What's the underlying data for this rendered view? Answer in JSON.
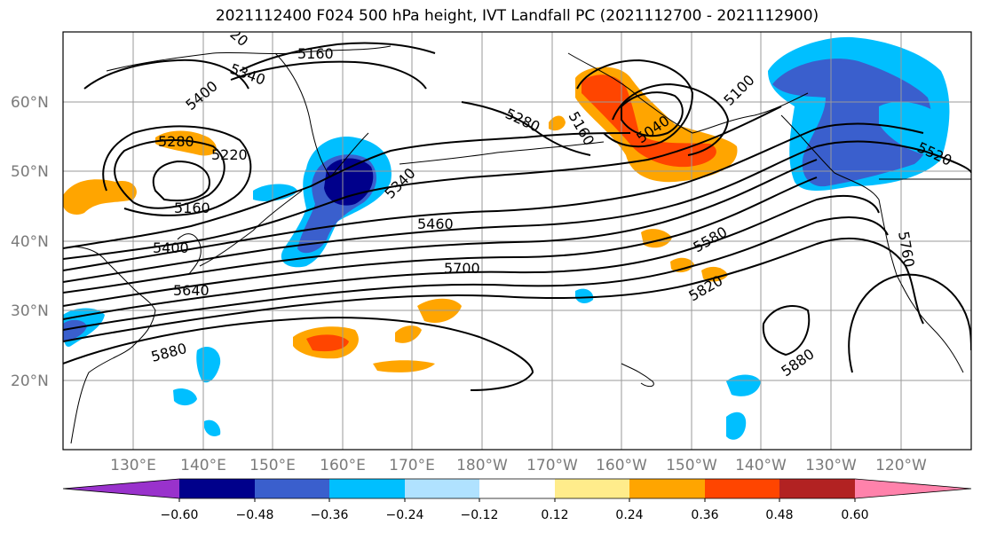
{
  "title": "2021112400 F024 500 hPa height, IVT Landfall PC (2021112700 - 2021112900)",
  "map": {
    "lat_ticks": [
      "60°N",
      "50°N",
      "40°N",
      "30°N",
      "20°N"
    ],
    "lon_ticks": [
      "130°E",
      "140°E",
      "150°E",
      "160°E",
      "170°E",
      "180°W",
      "170°W",
      "160°W",
      "150°W",
      "140°W",
      "130°W",
      "120°W"
    ],
    "contour_labels": [
      "5160",
      "5340",
      "5400",
      "5280",
      "5220",
      "5160",
      "5400",
      "5640",
      "5340",
      "5460",
      "5700",
      "5580",
      "5820",
      "5880",
      "5880",
      "5280",
      "5160",
      "5040",
      "5100",
      "5520",
      "5760",
      "20"
    ],
    "colors": {
      "land_outline": "#000000",
      "grid": "#9a9a9a",
      "contour": "#000000"
    }
  },
  "colorbar": {
    "tick_labels": [
      "−0.60",
      "−0.48",
      "−0.36",
      "−0.24",
      "−0.12",
      "0.12",
      "0.24",
      "0.36",
      "0.48",
      "0.60"
    ],
    "colors": [
      "#9932cc",
      "#00008b",
      "#3a5fcd",
      "#00bfff",
      "#b0e2ff",
      "#ffffff",
      "#ffec8b",
      "#ffa500",
      "#ff4500",
      "#b22222",
      "#ff82ab"
    ]
  }
}
